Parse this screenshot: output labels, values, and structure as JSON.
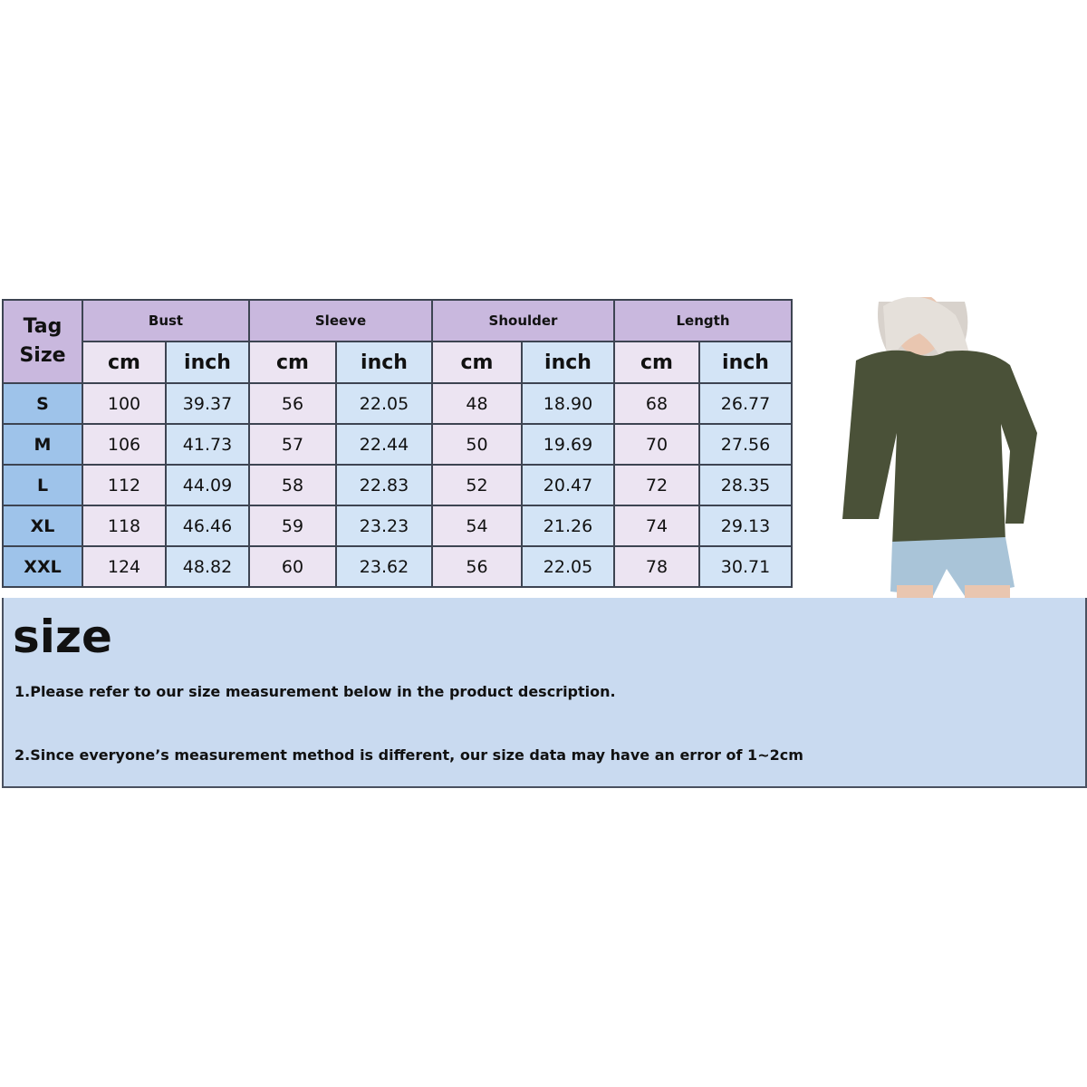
{
  "table": {
    "tag_header": [
      "Tag",
      "Size"
    ],
    "groups": [
      "Bust",
      "Sleeve",
      "Shoulder",
      "Length"
    ],
    "units": [
      "cm",
      "inch"
    ],
    "rows": [
      {
        "size": "S",
        "values": [
          "100",
          "39.37",
          "56",
          "22.05",
          "48",
          "18.90",
          "68",
          "26.77"
        ]
      },
      {
        "size": "M",
        "values": [
          "106",
          "41.73",
          "57",
          "22.44",
          "50",
          "19.69",
          "70",
          "27.56"
        ]
      },
      {
        "size": "L",
        "values": [
          "112",
          "44.09",
          "58",
          "22.83",
          "52",
          "20.47",
          "72",
          "28.35"
        ]
      },
      {
        "size": "XL",
        "values": [
          "118",
          "46.46",
          "59",
          "23.23",
          "54",
          "21.26",
          "74",
          "29.13"
        ]
      },
      {
        "size": "XXL",
        "values": [
          "124",
          "48.82",
          "60",
          "23.62",
          "56",
          "22.05",
          "78",
          "30.71"
        ]
      }
    ]
  },
  "note": {
    "title": "size",
    "line1": "1.Please refer to our size measurement below in the product description.",
    "line2": "2.Since everyone’s measurement method is different, our size data may have an error of 1~2cm"
  },
  "colors": {
    "header": "#c9b8de",
    "cm_cell": "#ece4f2",
    "inch_cell": "#d3e4f6",
    "size_cell": "#9ec3ea",
    "note_bg": "#c9daf0",
    "sweater": "#4a5138"
  }
}
